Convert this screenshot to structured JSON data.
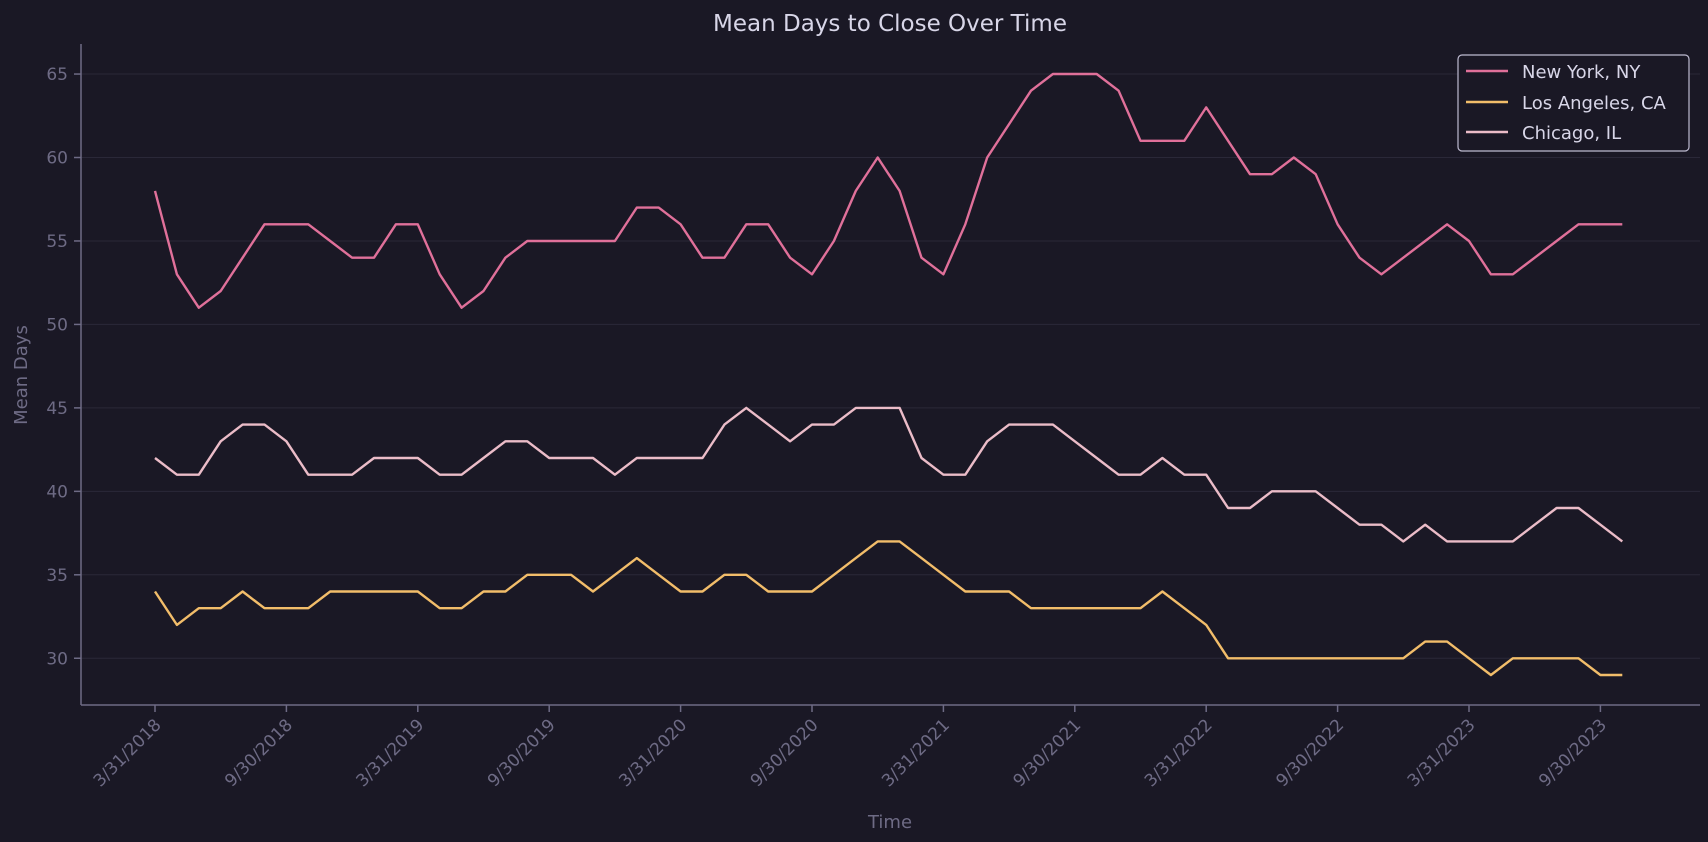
{
  "chart_data": {
    "type": "line",
    "title": "Mean Days to Close Over Time",
    "xlabel": "Time",
    "ylabel": "Mean Days",
    "ylim": [
      27.2,
      66.8
    ],
    "yticks": [
      30,
      35,
      40,
      45,
      50,
      55,
      60,
      65
    ],
    "xtick_labels": [
      "3/31/2018",
      "9/30/2018",
      "3/31/2019",
      "9/30/2019",
      "3/31/2020",
      "9/30/2020",
      "3/31/2021",
      "9/30/2021",
      "3/31/2022",
      "9/30/2022",
      "3/31/2023",
      "9/30/2023"
    ],
    "grid": "horizontal",
    "legend_position": "top-right",
    "series": [
      {
        "name": "New York, NY",
        "color": "#e0709a",
        "values": [
          58,
          53,
          51,
          52,
          54,
          56,
          56,
          56,
          55,
          54,
          54,
          56,
          56,
          53,
          51,
          52,
          54,
          55,
          55,
          55,
          55,
          55,
          57,
          57,
          56,
          54,
          54,
          56,
          56,
          54,
          53,
          55,
          58,
          60,
          58,
          54,
          53,
          56,
          60,
          62,
          64,
          65,
          65,
          65,
          64,
          61,
          61,
          61,
          63,
          61,
          59,
          59,
          60,
          59,
          56,
          54,
          53,
          54,
          55,
          56,
          55,
          53,
          53,
          54,
          55,
          56,
          56,
          56
        ]
      },
      {
        "name": "Los Angeles, CA",
        "color": "#f2bd6a",
        "values": [
          34,
          32,
          33,
          33,
          34,
          33,
          33,
          33,
          34,
          34,
          34,
          34,
          34,
          33,
          33,
          34,
          34,
          35,
          35,
          35,
          34,
          35,
          36,
          35,
          34,
          34,
          35,
          35,
          34,
          34,
          34,
          35,
          36,
          37,
          37,
          36,
          35,
          34,
          34,
          34,
          33,
          33,
          33,
          33,
          33,
          33,
          34,
          33,
          32,
          30,
          30,
          30,
          30,
          30,
          30,
          30,
          30,
          30,
          31,
          31,
          30,
          29,
          30,
          30,
          30,
          30,
          29,
          29
        ]
      },
      {
        "name": "Chicago, IL",
        "color": "#ebbcc8",
        "values": [
          42,
          41,
          41,
          43,
          44,
          44,
          43,
          41,
          41,
          41,
          42,
          42,
          42,
          41,
          41,
          42,
          43,
          43,
          42,
          42,
          42,
          41,
          42,
          42,
          42,
          42,
          44,
          45,
          44,
          43,
          44,
          44,
          45,
          45,
          45,
          42,
          41,
          41,
          43,
          44,
          44,
          44,
          43,
          42,
          41,
          41,
          42,
          41,
          41,
          39,
          39,
          40,
          40,
          40,
          39,
          38,
          38,
          37,
          38,
          37,
          37,
          37,
          37,
          38,
          39,
          39,
          38,
          37
        ]
      }
    ]
  }
}
